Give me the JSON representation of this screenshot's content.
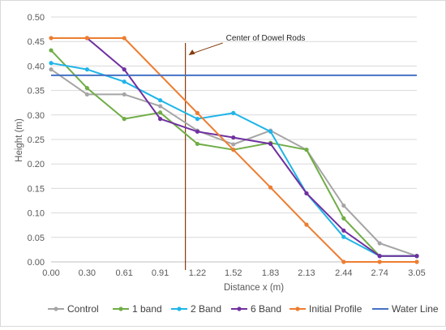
{
  "chart_data": {
    "type": "line",
    "xlabel": "Distance x (m)",
    "ylabel": "Height (m)",
    "x_tick_labels": [
      "0.00",
      "0.30",
      "0.61",
      "0.91",
      "1.22",
      "1.52",
      "1.83",
      "2.13",
      "2.44",
      "2.74",
      "3.05"
    ],
    "y_tick_labels": [
      "0.00",
      "0.05",
      "0.10",
      "0.15",
      "0.20",
      "0.25",
      "0.30",
      "0.35",
      "0.40",
      "0.45",
      "0.50"
    ],
    "ylim": [
      0,
      0.5
    ],
    "grid": "horizontal",
    "legend_position": "bottom",
    "series": [
      {
        "name": "Control",
        "color": "#a5a5a5",
        "x": [
          0.0,
          0.3,
          0.61,
          0.91,
          1.22,
          1.52,
          1.83,
          2.13,
          2.44,
          2.74,
          3.05
        ],
        "values": [
          0.393,
          0.342,
          0.342,
          0.318,
          0.268,
          0.24,
          0.268,
          0.229,
          0.115,
          0.038,
          0.012
        ]
      },
      {
        "name": "1 band",
        "color": "#70ad47",
        "x": [
          0.0,
          0.3,
          0.61,
          0.91,
          1.22,
          1.52,
          1.83,
          2.13,
          2.44,
          2.74,
          3.05
        ],
        "values": [
          0.432,
          0.355,
          0.292,
          0.305,
          0.241,
          0.229,
          0.243,
          0.229,
          0.089,
          0.012,
          0.012
        ]
      },
      {
        "name": "2 Band",
        "color": "#1fb5e8",
        "x": [
          0.0,
          0.3,
          0.61,
          0.91,
          1.22,
          1.52,
          1.83,
          2.13,
          2.44,
          2.74,
          3.05
        ],
        "values": [
          0.406,
          0.393,
          0.368,
          0.33,
          0.292,
          0.304,
          0.266,
          0.14,
          0.051,
          0.012,
          0.012
        ]
      },
      {
        "name": "6 Band",
        "color": "#7030a0",
        "x": [
          0.3,
          0.61,
          0.91,
          1.22,
          1.52,
          1.83,
          2.13,
          2.44,
          2.74,
          3.05
        ],
        "values": [
          0.457,
          0.393,
          0.292,
          0.266,
          0.254,
          0.241,
          0.14,
          0.064,
          0.012,
          0.012
        ]
      },
      {
        "name": "Initial Profile",
        "color": "#ed7d31",
        "x": [
          0.0,
          0.3,
          0.61,
          1.22,
          1.52,
          1.83,
          2.13,
          2.44,
          2.74,
          3.05
        ],
        "values": [
          0.457,
          0.457,
          0.457,
          0.304,
          0.229,
          0.152,
          0.076,
          0.0,
          0.0,
          0.0
        ]
      },
      {
        "name": "Water Line",
        "color": "#4472c4",
        "x": [
          0.0,
          3.05
        ],
        "values": [
          0.381,
          0.381
        ]
      }
    ],
    "annotations": [
      {
        "text": "Center of Dowel Rods",
        "x": 1.12,
        "color": "#843c0c"
      }
    ]
  }
}
